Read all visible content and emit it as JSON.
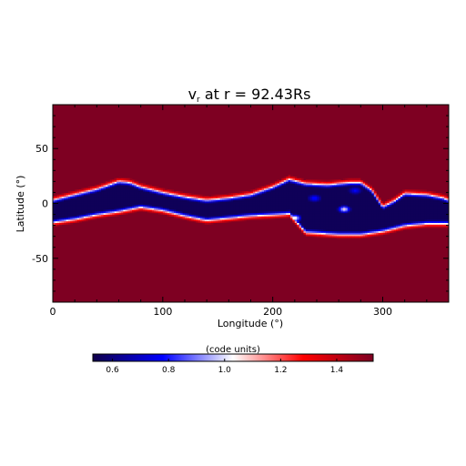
{
  "chart_data": {
    "type": "heatmap",
    "title_main": "v",
    "title_sub": "r",
    "title_rest": " at r = 92.43Rs",
    "xlabel": "Longitude (°)",
    "ylabel": "Latitude (°)",
    "xlim": [
      0,
      360
    ],
    "ylim": [
      -90,
      90
    ],
    "x_ticks": [
      0,
      100,
      200,
      300
    ],
    "y_ticks": [
      -50,
      0,
      50
    ],
    "colorbar": {
      "label": "(code units)",
      "range": [
        0.53,
        1.53
      ],
      "ticks": [
        "0.6",
        "0.8",
        "1.0",
        "1.2",
        "1.4"
      ],
      "tick_values": [
        0.6,
        0.8,
        1.0,
        1.2,
        1.4
      ]
    },
    "colors": {
      "low": "#10004a",
      "mid": "#ffffff",
      "high": "#7e0022",
      "blue": "#0000ff",
      "red": "#ff0000"
    },
    "background_value": 1.53,
    "band": {
      "center_lat": [
        [
          0,
          -6
        ],
        [
          20,
          -5
        ],
        [
          40,
          -2
        ],
        [
          60,
          3
        ],
        [
          80,
          0
        ],
        [
          100,
          -3
        ],
        [
          120,
          -4
        ],
        [
          140,
          -5
        ],
        [
          160,
          -2
        ],
        [
          180,
          0
        ],
        [
          200,
          2
        ],
        [
          220,
          5
        ],
        [
          240,
          0
        ],
        [
          260,
          -3
        ],
        [
          280,
          0
        ],
        [
          290,
          -5
        ],
        [
          300,
          -8
        ],
        [
          320,
          -6
        ],
        [
          340,
          -4
        ],
        [
          360,
          -4
        ]
      ],
      "upper_edge_lat": [
        [
          0,
          3
        ],
        [
          20,
          8
        ],
        [
          40,
          13
        ],
        [
          60,
          20
        ],
        [
          70,
          19
        ],
        [
          80,
          15
        ],
        [
          100,
          10
        ],
        [
          120,
          6
        ],
        [
          140,
          3
        ],
        [
          160,
          5
        ],
        [
          180,
          8
        ],
        [
          200,
          15
        ],
        [
          215,
          22
        ],
        [
          230,
          18
        ],
        [
          250,
          17
        ],
        [
          270,
          19
        ],
        [
          280,
          19
        ],
        [
          290,
          12
        ],
        [
          300,
          -3
        ],
        [
          310,
          2
        ],
        [
          320,
          9
        ],
        [
          340,
          8
        ],
        [
          355,
          5
        ],
        [
          360,
          3
        ]
      ],
      "lower_edge_lat": [
        [
          0,
          -17
        ],
        [
          20,
          -14
        ],
        [
          40,
          -10
        ],
        [
          60,
          -7
        ],
        [
          80,
          -3
        ],
        [
          100,
          -6
        ],
        [
          120,
          -11
        ],
        [
          140,
          -15
        ],
        [
          160,
          -13
        ],
        [
          180,
          -11
        ],
        [
          200,
          -10
        ],
        [
          215,
          -9
        ],
        [
          230,
          -26
        ],
        [
          260,
          -28
        ],
        [
          280,
          -28
        ],
        [
          300,
          -25
        ],
        [
          320,
          -20
        ],
        [
          340,
          -18
        ],
        [
          360,
          -18
        ]
      ],
      "core_value": 0.55,
      "features": [
        {
          "lon": 220,
          "lat": -13,
          "value": 1.15
        },
        {
          "lon": 265,
          "lat": -5,
          "value": 1.1
        },
        {
          "lon": 238,
          "lat": 5,
          "value": 0.85
        },
        {
          "lon": 275,
          "lat": 12,
          "value": 0.8
        }
      ]
    }
  }
}
